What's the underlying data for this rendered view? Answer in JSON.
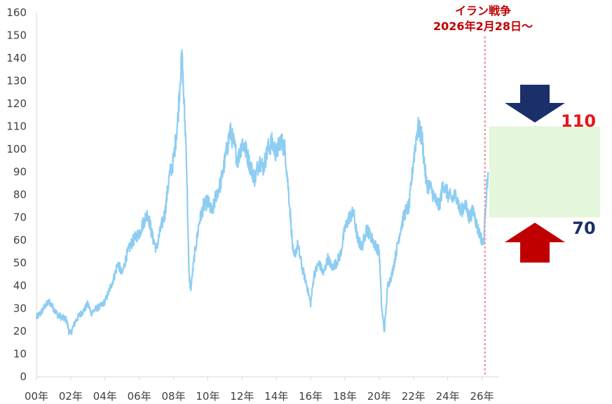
{
  "chart_data": {
    "type": "line",
    "title": "",
    "xlabel": "",
    "ylabel": "",
    "ylim": [
      0,
      160
    ],
    "yticks": [
      0,
      10,
      20,
      30,
      40,
      50,
      60,
      70,
      80,
      90,
      100,
      110,
      120,
      130,
      140,
      150,
      160
    ],
    "xlim": [
      2000,
      2027
    ],
    "xticks": [
      {
        "value": 2000,
        "label": "00年"
      },
      {
        "value": 2002,
        "label": "02年"
      },
      {
        "value": 2004,
        "label": "04年"
      },
      {
        "value": 2006,
        "label": "06年"
      },
      {
        "value": 2008,
        "label": "08年"
      },
      {
        "value": 2010,
        "label": "10年"
      },
      {
        "value": 2012,
        "label": "12年"
      },
      {
        "value": 2014,
        "label": "14年"
      },
      {
        "value": 2016,
        "label": "16年"
      },
      {
        "value": 2018,
        "label": "18年"
      },
      {
        "value": 2020,
        "label": "20年"
      },
      {
        "value": 2022,
        "label": "22年"
      },
      {
        "value": 2024,
        "label": "24年"
      },
      {
        "value": 2026,
        "label": "26年"
      }
    ],
    "grid": false,
    "legend": "none",
    "series_color": "#8ecdf2",
    "series": [
      {
        "x": [
          2000.0,
          2000.25,
          2000.5,
          2000.75,
          2001.0,
          2001.25,
          2001.5,
          2001.75,
          2001.9,
          2002.0,
          2002.25,
          2002.5,
          2002.75,
          2003.0,
          2003.2,
          2003.5,
          2003.75,
          2004.0,
          2004.25,
          2004.5,
          2004.75,
          2005.0,
          2005.25,
          2005.5,
          2005.75,
          2006.0,
          2006.25,
          2006.5,
          2006.75,
          2007.0,
          2007.25,
          2007.5,
          2007.75,
          2008.0,
          2008.25,
          2008.4,
          2008.5,
          2008.6,
          2008.75,
          2008.9,
          2009.0,
          2009.2,
          2009.5,
          2009.75,
          2010.0,
          2010.25,
          2010.5,
          2010.75,
          2011.0,
          2011.3,
          2011.5,
          2011.75,
          2012.0,
          2012.2,
          2012.5,
          2012.75,
          2013.0,
          2013.25,
          2013.5,
          2013.75,
          2014.0,
          2014.25,
          2014.5,
          2014.75,
          2015.0,
          2015.25,
          2015.5,
          2015.75,
          2016.0,
          2016.2,
          2016.5,
          2016.75,
          2017.0,
          2017.25,
          2017.5,
          2017.75,
          2018.0,
          2018.25,
          2018.5,
          2018.75,
          2019.0,
          2019.25,
          2019.5,
          2019.75,
          2020.0,
          2020.15,
          2020.3,
          2020.5,
          2020.75,
          2021.0,
          2021.25,
          2021.5,
          2021.75,
          2022.0,
          2022.25,
          2022.5,
          2022.75,
          2023.0,
          2023.25,
          2023.5,
          2023.75,
          2024.0,
          2024.25,
          2024.5,
          2024.75,
          2025.0,
          2025.25,
          2025.5,
          2025.75,
          2026.0,
          2026.1,
          2026.17,
          2026.25,
          2026.35
        ],
        "values": [
          26,
          28,
          31,
          33,
          30,
          27,
          26,
          25,
          20,
          19,
          24,
          27,
          29,
          32,
          28,
          30,
          31,
          33,
          38,
          43,
          50,
          45,
          53,
          58,
          61,
          63,
          68,
          72,
          62,
          56,
          65,
          72,
          88,
          95,
          113,
          133,
          140,
          122,
          98,
          45,
          38,
          52,
          68,
          75,
          77,
          72,
          80,
          85,
          95,
          108,
          103,
          95,
          103,
          100,
          92,
          87,
          95,
          92,
          100,
          103,
          98,
          104,
          100,
          78,
          52,
          58,
          48,
          41,
          32,
          45,
          50,
          45,
          52,
          48,
          50,
          54,
          65,
          70,
          72,
          60,
          57,
          65,
          62,
          58,
          55,
          30,
          20,
          40,
          45,
          55,
          65,
          72,
          75,
          95,
          110,
          105,
          85,
          83,
          78,
          75,
          85,
          80,
          78,
          80,
          72,
          76,
          70,
          73,
          65,
          60,
          58,
          70,
          80,
          90
        ],
        "color": "#8ecdf2"
      }
    ],
    "annotations": {
      "event_line_x": 2026.17,
      "event_label_line1": "イラン戦争",
      "event_label_line2": "2026年2月28日〜",
      "forecast_band": {
        "low": 70,
        "high": 110
      },
      "band_high_label": "110",
      "band_low_label": "70",
      "band_color": "#e4f6dc",
      "arrow_down_color": "#1b2f6b",
      "arrow_up_color": "#c00000",
      "event_line_color": "#e8a0a8"
    }
  }
}
